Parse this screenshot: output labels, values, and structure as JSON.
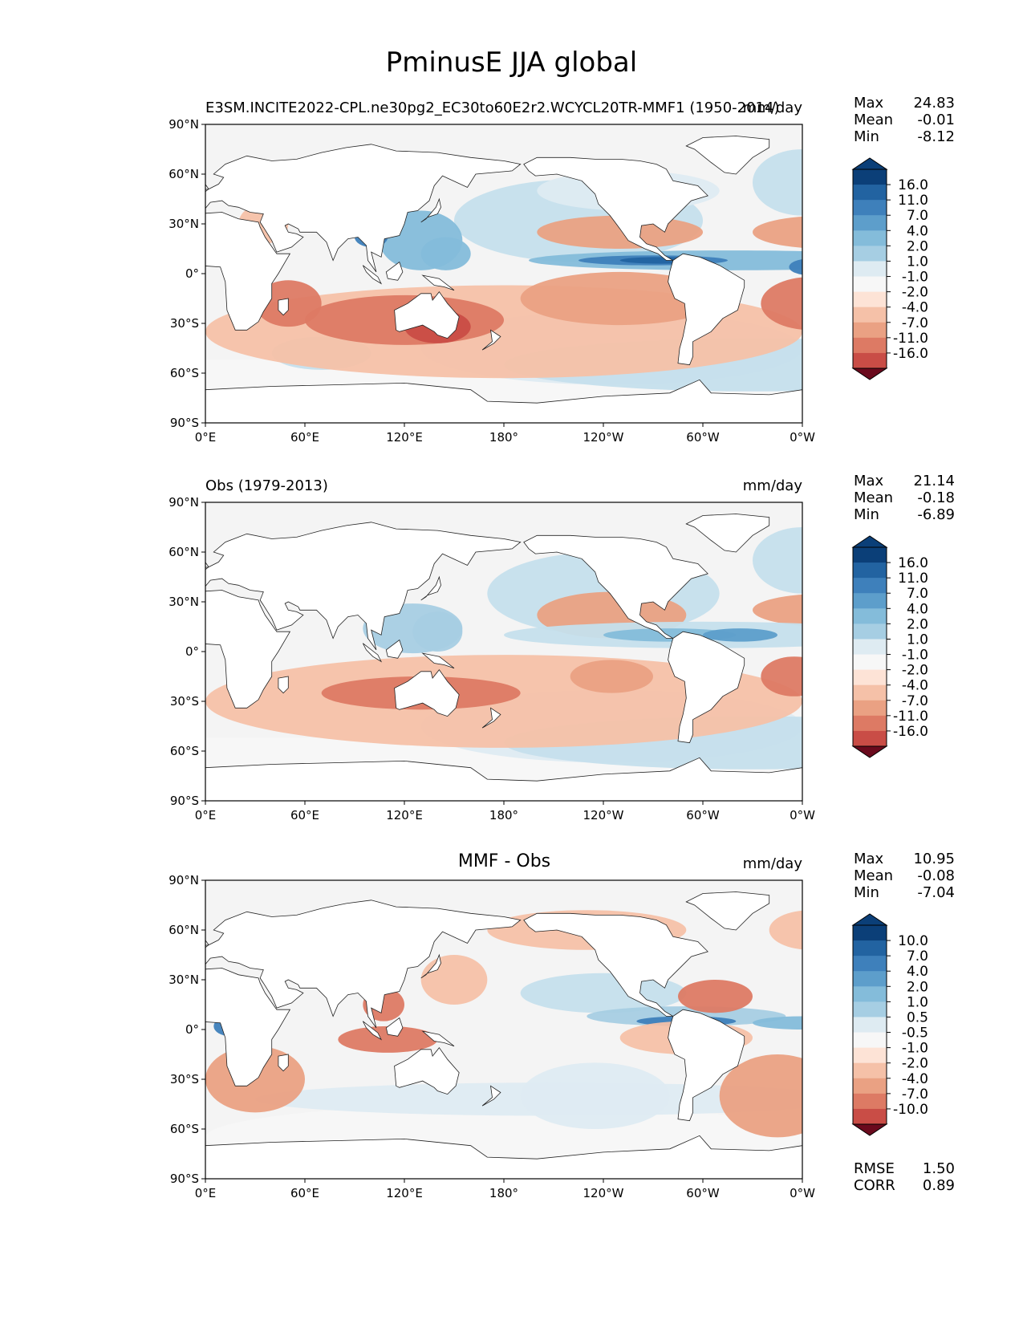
{
  "title": "PminusE JJA global",
  "colors": {
    "blues": [
      "#f7f7f7",
      "#deebf2",
      "#c5dfec",
      "#a6cee3",
      "#84bcda",
      "#5d9ecb",
      "#3e80bb",
      "#2263a1",
      "#0b3f78"
    ],
    "reds": [
      "#fde3d6",
      "#f5c1a8",
      "#eaa183",
      "#dd7a64",
      "#c94d46",
      "#ac1f2f",
      "#6a0a1d"
    ],
    "coast": "#222222",
    "land": "#ffffff",
    "sea_ice": "#f4f4f4"
  },
  "chart_data": [
    {
      "type": "heatmap",
      "projection": "plate-carree",
      "title": "E3SM.INCITE2022-CPL.ne30pg2_EC30to60E2r2.WCYCL20TR-MMF1 (1950-2014)",
      "units": "mm/day",
      "x_ticks": [
        "0°E",
        "60°E",
        "120°E",
        "180°",
        "120°W",
        "60°W",
        "0°W"
      ],
      "y_ticks": [
        "90°N",
        "60°N",
        "30°N",
        "0°",
        "30°S",
        "60°S",
        "90°S"
      ],
      "xlim": [
        0,
        360
      ],
      "ylim": [
        -90,
        90
      ],
      "stats": [
        {
          "label": "Max",
          "value": "24.83"
        },
        {
          "label": "Mean",
          "value": "-0.01"
        },
        {
          "label": "Min",
          "value": "-8.12"
        }
      ],
      "colorbar": {
        "levels": [
          "16.0",
          "11.0",
          "7.0",
          "4.0",
          "2.0",
          "1.0",
          "-1.0",
          "-2.0",
          "-4.0",
          "-7.0",
          "-11.0",
          "-16.0"
        ],
        "extend": "both"
      }
    },
    {
      "type": "heatmap",
      "projection": "plate-carree",
      "title": "Obs (1979-2013)",
      "units": "mm/day",
      "x_ticks": [
        "0°E",
        "60°E",
        "120°E",
        "180°",
        "120°W",
        "60°W",
        "0°W"
      ],
      "y_ticks": [
        "90°N",
        "60°N",
        "30°N",
        "0°",
        "30°S",
        "60°S",
        "90°S"
      ],
      "xlim": [
        0,
        360
      ],
      "ylim": [
        -90,
        90
      ],
      "stats": [
        {
          "label": "Max",
          "value": "21.14"
        },
        {
          "label": "Mean",
          "value": "-0.18"
        },
        {
          "label": "Min",
          "value": "-6.89"
        }
      ],
      "colorbar": {
        "levels": [
          "16.0",
          "11.0",
          "7.0",
          "4.0",
          "2.0",
          "1.0",
          "-1.0",
          "-2.0",
          "-4.0",
          "-7.0",
          "-11.0",
          "-16.0"
        ],
        "extend": "both"
      }
    },
    {
      "type": "heatmap",
      "projection": "plate-carree",
      "title": "MMF - Obs",
      "units": "mm/day",
      "x_ticks": [
        "0°E",
        "60°E",
        "120°E",
        "180°",
        "120°W",
        "60°W",
        "0°W"
      ],
      "y_ticks": [
        "90°N",
        "60°N",
        "30°N",
        "0°",
        "30°S",
        "60°S",
        "90°S"
      ],
      "xlim": [
        0,
        360
      ],
      "ylim": [
        -90,
        90
      ],
      "stats": [
        {
          "label": "Max",
          "value": "10.95"
        },
        {
          "label": "Mean",
          "value": "-0.08"
        },
        {
          "label": "Min",
          "value": "-7.04"
        }
      ],
      "colorbar": {
        "levels": [
          "10.0",
          "7.0",
          "4.0",
          "2.0",
          "1.0",
          "0.5",
          "-0.5",
          "-1.0",
          "-2.0",
          "-4.0",
          "-7.0",
          "-10.0"
        ],
        "extend": "both"
      },
      "metrics": [
        {
          "label": "RMSE",
          "value": "1.50"
        },
        {
          "label": "CORR",
          "value": "0.89"
        }
      ]
    }
  ]
}
